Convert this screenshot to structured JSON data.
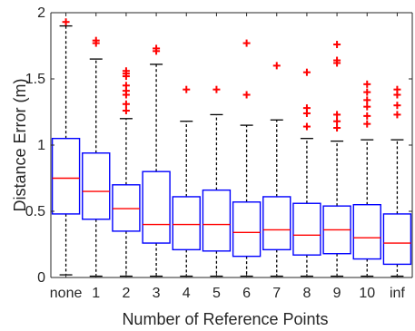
{
  "chart_data": {
    "type": "box",
    "xlabel": "Number of Reference Points",
    "ylabel": "Distance Error (m)",
    "ylim": [
      0,
      2
    ],
    "yticks": [
      "0",
      "0.5",
      "1",
      "1.5",
      "2"
    ],
    "grid": false,
    "categories": [
      "none",
      "1",
      "2",
      "3",
      "4",
      "5",
      "6",
      "7",
      "8",
      "9",
      "10",
      "inf"
    ],
    "boxes": [
      {
        "min": 0.02,
        "q1": 0.48,
        "median": 0.75,
        "q3": 1.05,
        "max": 1.9,
        "outliers": [
          1.93
        ]
      },
      {
        "min": 0.01,
        "q1": 0.44,
        "median": 0.65,
        "q3": 0.94,
        "max": 1.65,
        "outliers": [
          1.77,
          1.79
        ]
      },
      {
        "min": 0.01,
        "q1": 0.35,
        "median": 0.52,
        "q3": 0.7,
        "max": 1.2,
        "outliers": [
          1.26,
          1.31,
          1.38,
          1.41,
          1.45,
          1.52,
          1.54,
          1.56
        ]
      },
      {
        "min": 0.01,
        "q1": 0.26,
        "median": 0.4,
        "q3": 0.8,
        "max": 1.61,
        "outliers": [
          1.71,
          1.73
        ]
      },
      {
        "min": 0.01,
        "q1": 0.21,
        "median": 0.4,
        "q3": 0.61,
        "max": 1.18,
        "outliers": [
          1.42
        ]
      },
      {
        "min": 0.01,
        "q1": 0.2,
        "median": 0.4,
        "q3": 0.66,
        "max": 1.23,
        "outliers": [
          1.42
        ]
      },
      {
        "min": 0.01,
        "q1": 0.16,
        "median": 0.34,
        "q3": 0.57,
        "max": 1.15,
        "outliers": [
          1.38,
          1.77
        ]
      },
      {
        "min": 0.01,
        "q1": 0.21,
        "median": 0.36,
        "q3": 0.61,
        "max": 1.19,
        "outliers": [
          1.6
        ]
      },
      {
        "min": 0.01,
        "q1": 0.17,
        "median": 0.32,
        "q3": 0.56,
        "max": 1.05,
        "outliers": [
          1.14,
          1.24,
          1.28,
          1.55
        ]
      },
      {
        "min": 0.01,
        "q1": 0.18,
        "median": 0.36,
        "q3": 0.54,
        "max": 1.03,
        "outliers": [
          1.13,
          1.18,
          1.23,
          1.62,
          1.64,
          1.76
        ]
      },
      {
        "min": 0.01,
        "q1": 0.14,
        "median": 0.3,
        "q3": 0.55,
        "max": 1.04,
        "outliers": [
          1.16,
          1.22,
          1.29,
          1.34,
          1.4,
          1.46
        ]
      },
      {
        "min": 0.01,
        "q1": 0.1,
        "median": 0.26,
        "q3": 0.48,
        "max": 1.04,
        "outliers": [
          1.23,
          1.3,
          1.38,
          1.42
        ]
      }
    ],
    "colors": {
      "box": "#0000ff",
      "median": "#ff0000",
      "whisker": "#000000",
      "outlier": "#ff0000",
      "axis": "#262626"
    }
  }
}
